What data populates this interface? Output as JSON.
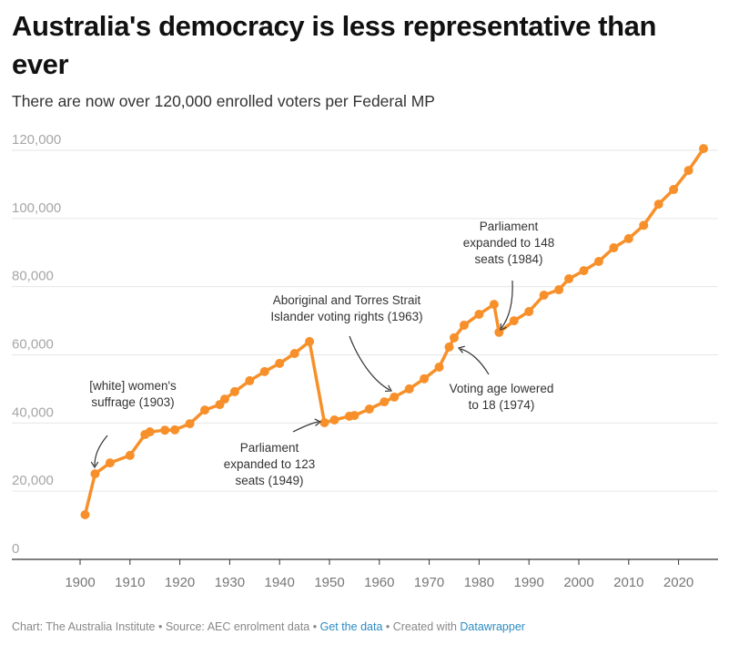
{
  "header": {
    "title": "Australia's democracy is less representative than ever",
    "subtitle": "There are now over 120,000 enrolled voters per Federal MP"
  },
  "footer": {
    "chart_credit": "Chart: The Australia Institute",
    "separator": " • ",
    "source": "Source: AEC enrolment data",
    "get_data": "Get the data",
    "created_with": "Created with ",
    "tool": "Datawrapper"
  },
  "colors": {
    "line": "#f7902a",
    "grid": "#e6e6e6",
    "axis": "#333333",
    "link": "#2b8cc4"
  },
  "chart_data": {
    "type": "line",
    "title": "Australia's democracy is less representative than ever",
    "subtitle": "There are now over 120,000 enrolled voters per Federal MP",
    "xlabel": "",
    "ylabel": "Enrolled voters per Federal MP",
    "xlim": [
      1890,
      2030
    ],
    "ylim": [
      0,
      120000
    ],
    "grid": true,
    "yticks": [
      0,
      20000,
      40000,
      60000,
      80000,
      100000,
      120000
    ],
    "ytick_labels": [
      "0",
      "20,000",
      "40,000",
      "60,000",
      "80,000",
      "100,000",
      "120,000"
    ],
    "xticks": [
      1900,
      1910,
      1920,
      1930,
      1940,
      1950,
      1960,
      1970,
      1980,
      1990,
      2000,
      2010,
      2020
    ],
    "xtick_labels": [
      "1900",
      "1910",
      "1920",
      "1930",
      "1940",
      "1950",
      "1960",
      "1970",
      "1980",
      "1990",
      "2000",
      "2010",
      "2020"
    ],
    "series": [
      {
        "name": "Enrolled voters per Federal MP",
        "x": [
          1901,
          1903,
          1906,
          1910,
          1913,
          1914,
          1917,
          1919,
          1922,
          1925,
          1928,
          1929,
          1931,
          1934,
          1937,
          1940,
          1943,
          1946,
          1949,
          1951,
          1954,
          1955,
          1958,
          1961,
          1963,
          1966,
          1969,
          1972,
          1974,
          1975,
          1977,
          1980,
          1983,
          1984,
          1987,
          1990,
          1993,
          1996,
          1998,
          2001,
          2004,
          2007,
          2010,
          2013,
          2016,
          2019,
          2022,
          2025
        ],
        "values": [
          13100,
          25100,
          28300,
          30500,
          36600,
          37400,
          37900,
          38000,
          39800,
          43800,
          45400,
          47000,
          49200,
          52400,
          55100,
          57500,
          60400,
          63900,
          40100,
          40900,
          42000,
          42200,
          44100,
          46200,
          47600,
          50000,
          53000,
          56400,
          62300,
          65000,
          68700,
          71900,
          74800,
          66600,
          70000,
          72700,
          77500,
          79100,
          82300,
          84700,
          87400,
          91400,
          94100,
          98000,
          104200,
          108500,
          114100,
          120500
        ]
      }
    ],
    "annotations": [
      {
        "lines": [
          "[white] women's",
          "suffrage (1903)"
        ],
        "target_year": 1903
      },
      {
        "lines": [
          "Parliament",
          "expanded to 123",
          "seats (1949)"
        ],
        "target_year": 1949
      },
      {
        "lines": [
          "Aboriginal and Torres Strait",
          "Islander voting rights (1963)"
        ],
        "target_year": 1963
      },
      {
        "lines": [
          "Voting age lowered",
          "to 18 (1974)"
        ],
        "target_year": 1974
      },
      {
        "lines": [
          "Parliament",
          "expanded to 148",
          "seats (1984)"
        ],
        "target_year": 1984
      }
    ]
  }
}
